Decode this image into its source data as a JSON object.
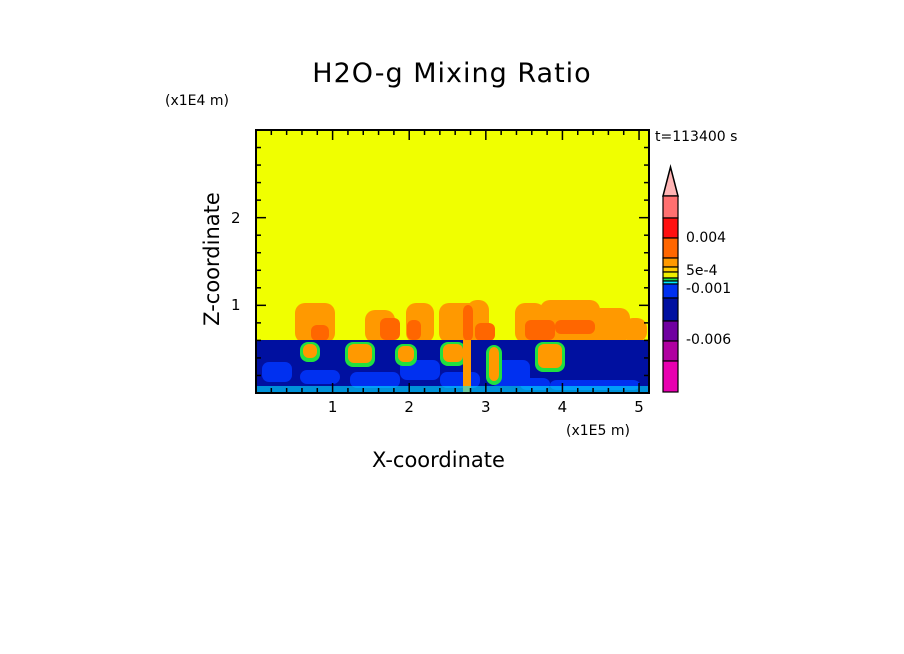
{
  "chart_data": {
    "type": "heatmap",
    "subtype": "filled contour",
    "title": "H2O-g Mixing Ratio",
    "xlabel": "X-coordinate",
    "ylabel": "Z-coordinate",
    "x_unit": "(x1E5 m)",
    "z_unit": "(x1E4 m)",
    "time_label": "t=113400 s",
    "xlim": [
      0,
      5.13
    ],
    "ylim": [
      0,
      3.0
    ],
    "x_ticks": [
      "1",
      "2",
      "3",
      "4",
      "5"
    ],
    "x_tick_values": [
      1,
      2,
      3,
      4,
      5
    ],
    "y_ticks": [
      "1",
      "2"
    ],
    "y_tick_values": [
      1,
      2
    ],
    "colorbar": {
      "extend": "max",
      "tick_labels": [
        "0.004",
        "5e-4",
        "-0.001",
        "-0.006"
      ],
      "colors": [
        "#ffb4b4",
        "#ff7070",
        "#ff1010",
        "#ff6600",
        "#ff9900",
        "#ffcc00",
        "#f0f000",
        "#20e040",
        "#00e8ff",
        "#0030f0",
        "#0010a0",
        "#7000a0",
        "#b000a0",
        "#e800b0"
      ],
      "arrow_color": "#ffb4b4"
    },
    "field_colors": {
      "upper": "#f0ff00",
      "lower": "#0010a0",
      "plume": "#ff9900",
      "plume_core": "#ff6600",
      "mid_blue": "#0030f0",
      "cyan": "#00e8ff",
      "green": "#20e040"
    }
  }
}
